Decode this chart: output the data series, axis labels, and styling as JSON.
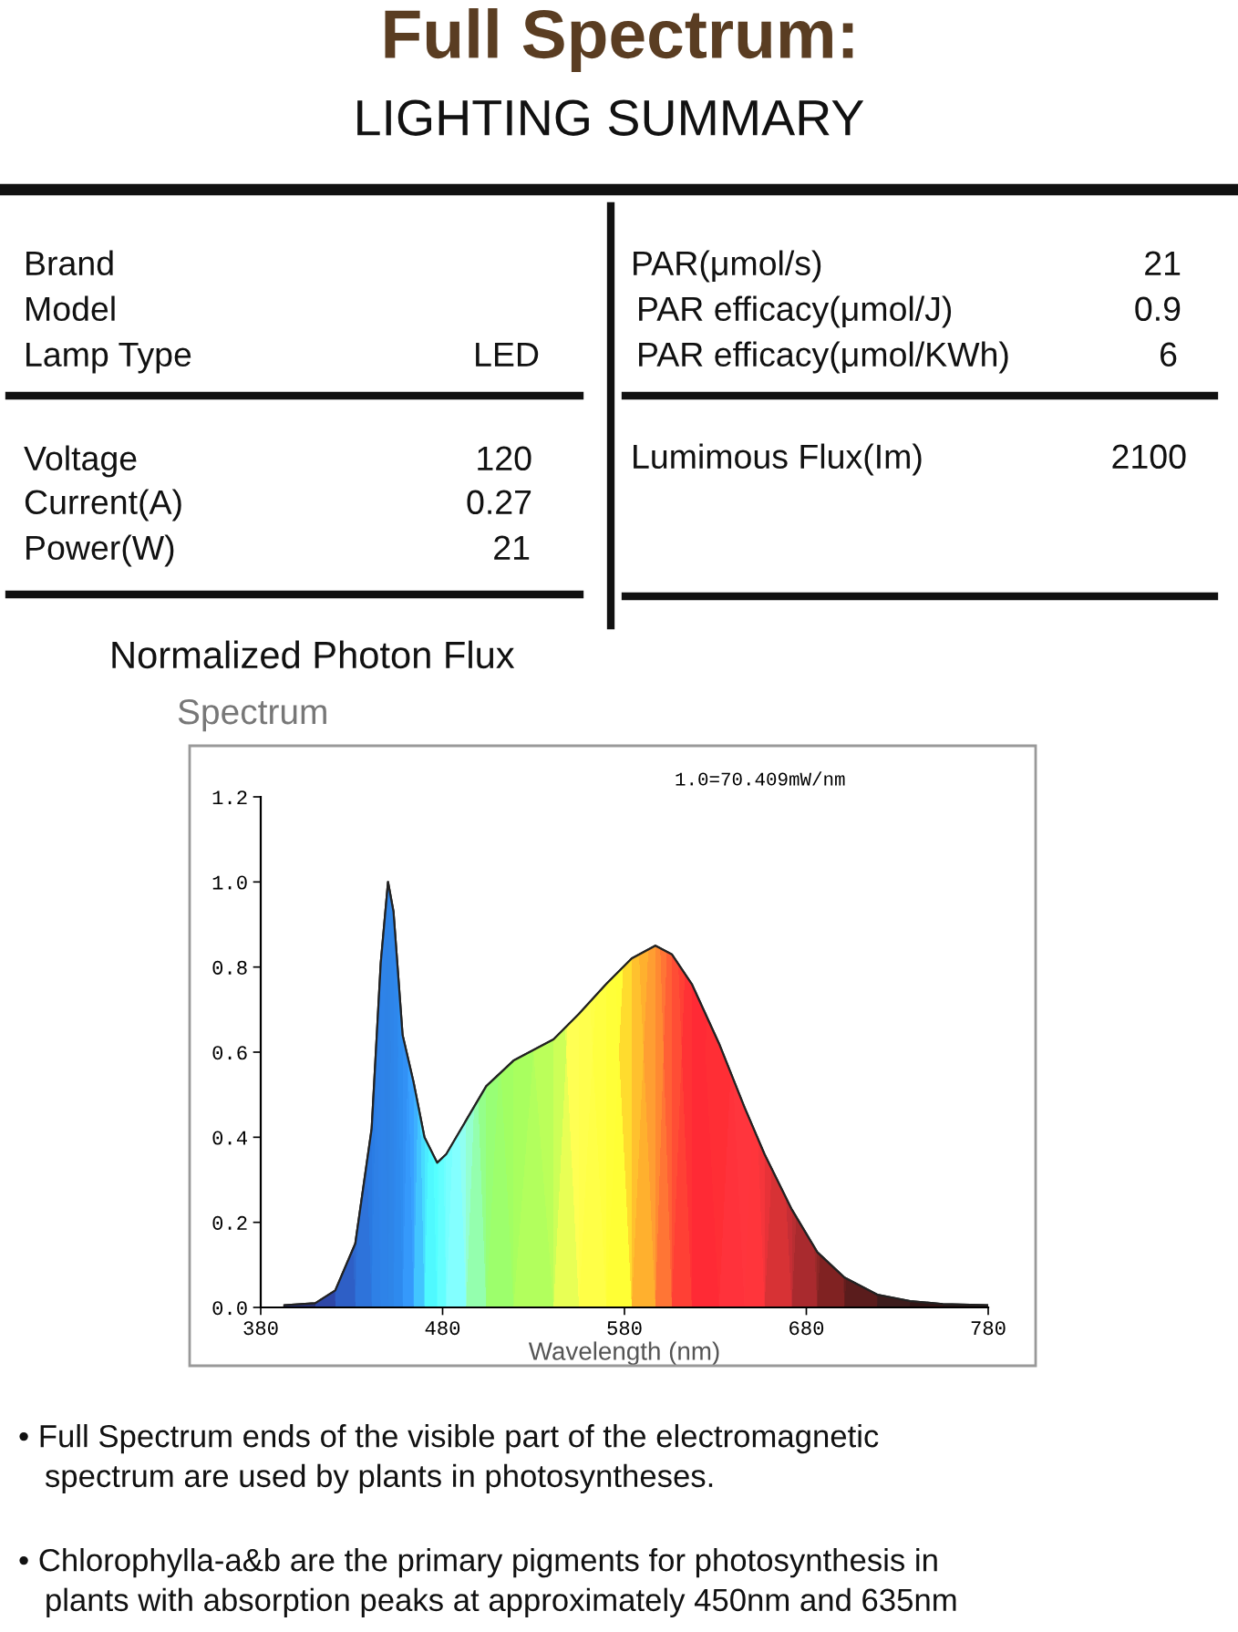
{
  "chart_data": [
    {
      "type": "other",
      "title": "Full Spectrum:",
      "subtitle": "LIGHTING SUMMARY",
      "color": "#5a3d22",
      "annotations": [
        "Brand",
        "Model",
        "Lamp Type",
        "LED",
        "Voltage",
        "120",
        "Current(A)",
        "0.27",
        "Power(W)",
        "21",
        "PAR(μmol/s)",
        "21",
        "PAR efficacy(μmol/J)",
        "0.9",
        "PAR efficacy(μmol/KWh)",
        "6",
        "Lumimous Flux(Im)",
        "2100"
      ]
    },
    {
      "type": "area",
      "title": "Normalized Photon Flux",
      "subtitle": "Spectrum",
      "xlabel": "Wavelength (nm)",
      "x": [
        393,
        410,
        421,
        432,
        441,
        446,
        450,
        453,
        458,
        464,
        470,
        477,
        482,
        493,
        504,
        519,
        541,
        555,
        570,
        584,
        597,
        606,
        617,
        632,
        646,
        657,
        672,
        686,
        701,
        719,
        737,
        755,
        780
      ],
      "series": [
        {
          "color": "#222222",
          "values": [
            0.005,
            0.01,
            0.04,
            0.15,
            0.42,
            0.81,
            1.0,
            0.93,
            0.64,
            0.53,
            0.4,
            0.34,
            0.36,
            0.44,
            0.52,
            0.58,
            0.63,
            0.69,
            0.76,
            0.82,
            0.85,
            0.83,
            0.76,
            0.62,
            0.47,
            0.36,
            0.23,
            0.13,
            0.07,
            0.03,
            0.015,
            0.008,
            0.005
          ],
          "colors": [
            "#1a1a40",
            "#1f2a6a",
            "#1f3a8a",
            "#1e4f9c",
            "#1d5aa8",
            "#1e5fac",
            "#1e5ea8",
            "#1f62ad",
            "#2168b3",
            "#2a7cc4",
            "#35b3e6",
            "#3ec6f0",
            "#56c6e0",
            "#6cc0a8",
            "#6cbf55",
            "#78c044",
            "#8cc63f",
            "#c8d43a",
            "#f6eb2a",
            "#f7941d",
            "#f26a22",
            "#ee3a24",
            "#ed1c24",
            "#e31e24",
            "#c9252b",
            "#b02328",
            "#8c1f22",
            "#6b1a1a",
            "#4d1414",
            "#331010",
            "#241010",
            "#1e0f0f",
            "#1a0d0d"
          ]
        }
      ],
      "xlim": [
        380,
        780
      ],
      "ylim": [
        0.0,
        1.2
      ],
      "xticks": [
        380,
        480,
        580,
        680,
        780
      ],
      "yticks": [
        {
          "value": 0,
          "label": "0.0"
        },
        0.2,
        0.4,
        0.6,
        0.8,
        {
          "value": 1,
          "label": "1.0"
        },
        1.2
      ],
      "grid": false,
      "annotations": [
        "1.0=70.409mW/nm",
        "• Full Spectrum ends of the visible part of the electromagnetic\n   spectrum are used by plants in photosyntheses.",
        "• Chlorophylla-a&b are the primary pigments for photosynthesis in\n   plants with absorption peaks at approximately 450nm and 635nm"
      ]
    }
  ]
}
